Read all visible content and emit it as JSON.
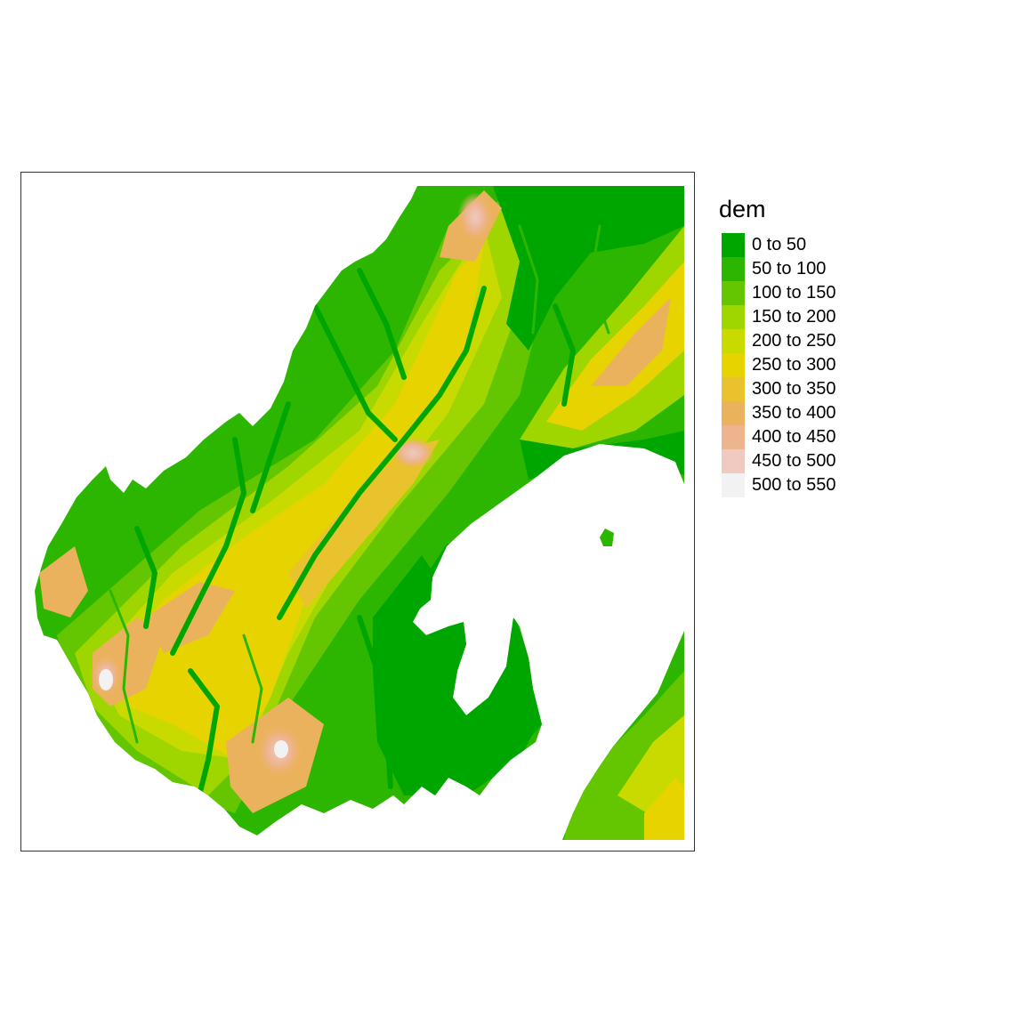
{
  "map": {
    "legend": {
      "title": "dem",
      "classes": [
        {
          "label": "0 to 50",
          "color": "#00A600"
        },
        {
          "label": "50 to 100",
          "color": "#2DB600"
        },
        {
          "label": "100 to 150",
          "color": "#63C600"
        },
        {
          "label": "150 to 200",
          "color": "#A0D600"
        },
        {
          "label": "200 to 250",
          "color": "#C9DA00"
        },
        {
          "label": "250 to 300",
          "color": "#E6D300"
        },
        {
          "label": "300 to 350",
          "color": "#E8C32E"
        },
        {
          "label": "350 to 400",
          "color": "#EBB25E"
        },
        {
          "label": "400 to 450",
          "color": "#EDB48E"
        },
        {
          "label": "450 to 500",
          "color": "#F0C9C0"
        },
        {
          "label": "500 to 550",
          "color": "#F2F2F2"
        }
      ]
    }
  }
}
